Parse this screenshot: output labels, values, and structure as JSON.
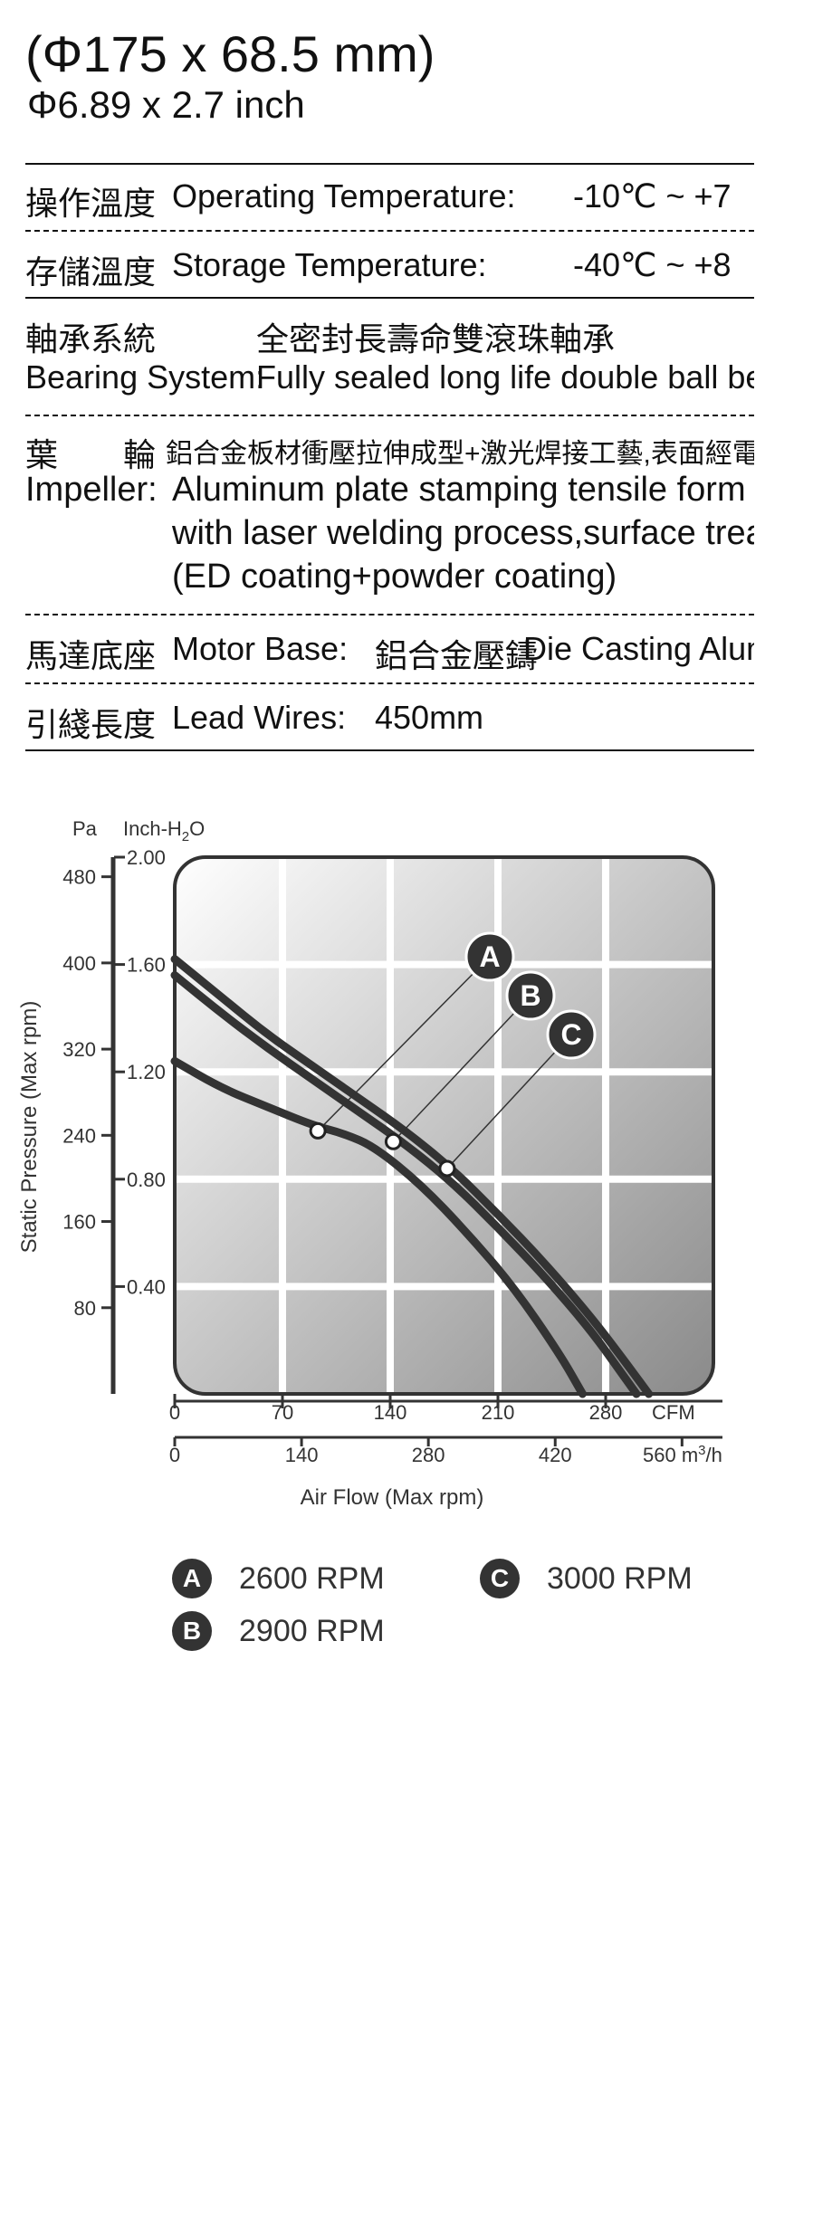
{
  "dimensions": {
    "main": "(Φ175 x 68.5 mm)",
    "sub": "Φ6.89 x 2.7 inch"
  },
  "specs": {
    "operating_temp": {
      "zh": "操作溫度",
      "en": "Operating Temperature:",
      "value": "-10℃ ~ +7"
    },
    "storage_temp": {
      "zh": "存儲溫度",
      "en": "Storage Temperature:",
      "value": "-40℃ ~ +8"
    },
    "bearing": {
      "zh": "軸承系統",
      "zh_value": "全密封長壽命雙滾珠軸承",
      "en": "Bearing System:",
      "en_value": "Fully sealed long life double ball bear"
    },
    "impeller": {
      "zh": "葉　　輪",
      "zh_value": "鋁合金板材衝壓拉伸成型+激光焊接工藝,表面經電泳+噴塗",
      "en": "Impeller:",
      "en_value_1": "Aluminum plate stamping tensile form",
      "en_value_2": "with laser welding process,surface treatm",
      "en_value_3": "(ED coating+powder coating)"
    },
    "motor_base": {
      "zh": "馬達底座",
      "en": "Motor Base:",
      "zh_value": "鋁合金壓鑄",
      "en_value": "Die Casting Alumi"
    },
    "lead_wires": {
      "zh": "引綫長度",
      "en": "Lead Wires:",
      "value": "450mm"
    }
  },
  "chart_data": {
    "type": "line",
    "left_axis_unit": "Pa",
    "right_axis_unit_prefix": "Inch-H",
    "right_axis_unit_sub": "2",
    "right_axis_unit_suffix": "O",
    "ylabel": "Static Pressure (Max rpm)",
    "xlabel": "Air Flow (Max rpm)",
    "x_unit_cfm": "CFM",
    "x_unit_m3h_prefix": "560 m",
    "x_unit_m3h_sup": "3",
    "x_unit_m3h_suffix": "/h",
    "pa_ticks": [
      "480",
      "400",
      "320",
      "240",
      "160",
      "80"
    ],
    "inch_ticks": [
      "2.00",
      "1.60",
      "1.20",
      "0.80",
      "0.40"
    ],
    "cfm_ticks": [
      "0",
      "70",
      "140",
      "210",
      "280"
    ],
    "m3h_ticks": [
      "0",
      "140",
      "280",
      "420"
    ],
    "xlim_cfm": [
      0,
      350
    ],
    "ylim_inch": [
      0,
      2.0
    ],
    "series": [
      {
        "badge": "A",
        "name": "2600 RPM",
        "x": [
          0,
          30,
          60,
          90,
          110,
          130,
          160,
          190,
          220,
          250,
          265
        ],
        "y": [
          1.24,
          1.14,
          1.07,
          1.0,
          0.97,
          0.92,
          0.78,
          0.6,
          0.4,
          0.15,
          0.0
        ],
        "marker_x": 93,
        "marker_y": 0.98
      },
      {
        "badge": "B",
        "name": "2900 RPM",
        "x": [
          0,
          30,
          60,
          90,
          120,
          150,
          180,
          210,
          240,
          270,
          290,
          300
        ],
        "y": [
          1.56,
          1.42,
          1.29,
          1.17,
          1.05,
          0.93,
          0.79,
          0.62,
          0.44,
          0.24,
          0.08,
          0.0
        ],
        "marker_x": 142,
        "marker_y": 0.94
      },
      {
        "badge": "C",
        "name": "3000 RPM",
        "x": [
          0,
          30,
          60,
          90,
          120,
          150,
          180,
          210,
          240,
          270,
          290,
          308
        ],
        "y": [
          1.62,
          1.48,
          1.34,
          1.22,
          1.1,
          0.98,
          0.84,
          0.67,
          0.49,
          0.29,
          0.14,
          0.0
        ],
        "marker_x": 177,
        "marker_y": 0.84
      }
    ],
    "colors": {
      "curve": "#333333",
      "bg_light": "#ffffff",
      "bg_dark": "#8a8a8a",
      "grid": "#ffffff"
    }
  }
}
